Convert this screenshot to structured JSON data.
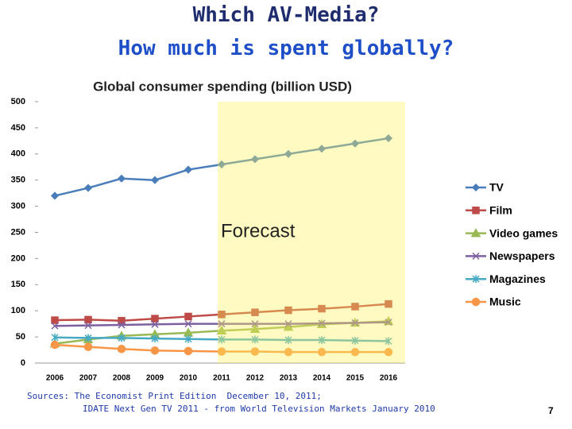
{
  "header": {
    "title_line1": "Which AV-Media?",
    "title_line2": "How much is spent globally?"
  },
  "chart_data": {
    "type": "line",
    "title": "Global consumer spending (billion USD)",
    "annotation": "Forecast",
    "categories": [
      "2006",
      "2007",
      "2008",
      "2009",
      "2010",
      "2011",
      "2012",
      "2013",
      "2014",
      "2015",
      "2016"
    ],
    "series": [
      {
        "name": "TV",
        "color": "#4a7ebb",
        "marker": "diamond",
        "values": [
          320,
          335,
          353,
          350,
          370,
          380,
          390,
          400,
          410,
          420,
          430
        ]
      },
      {
        "name": "Film",
        "color": "#be4b48",
        "marker": "square",
        "values": [
          82,
          83,
          81,
          85,
          89,
          93,
          97,
          101,
          104,
          108,
          113
        ]
      },
      {
        "name": "Video games",
        "color": "#98b954",
        "marker": "triangle",
        "values": [
          37,
          45,
          52,
          55,
          58,
          62,
          65,
          69,
          74,
          77,
          80
        ]
      },
      {
        "name": "Newspapers",
        "color": "#7d60a0",
        "marker": "x",
        "values": [
          71,
          72,
          73,
          74,
          75,
          75,
          75,
          75,
          76,
          77,
          78
        ]
      },
      {
        "name": "Magazines",
        "color": "#46aac5",
        "marker": "star",
        "values": [
          49,
          48,
          48,
          47,
          46,
          45,
          45,
          44,
          44,
          43,
          42
        ]
      },
      {
        "name": "Music",
        "color": "#f79646",
        "marker": "circle",
        "values": [
          35,
          31,
          27,
          24,
          23,
          22,
          22,
          21,
          21,
          21,
          21
        ]
      }
    ],
    "ylim": [
      0,
      500
    ],
    "yticks": [
      0,
      50,
      100,
      150,
      200,
      250,
      300,
      350,
      400,
      450,
      500
    ],
    "grid": false,
    "legend": "right"
  },
  "footer": {
    "source_line1": "Sources: The Economist Print Edition  December 10, 2011;",
    "source_line2": "IDATE Next Gen TV 2011 - from World Television Markets January 2010",
    "page": "7"
  }
}
